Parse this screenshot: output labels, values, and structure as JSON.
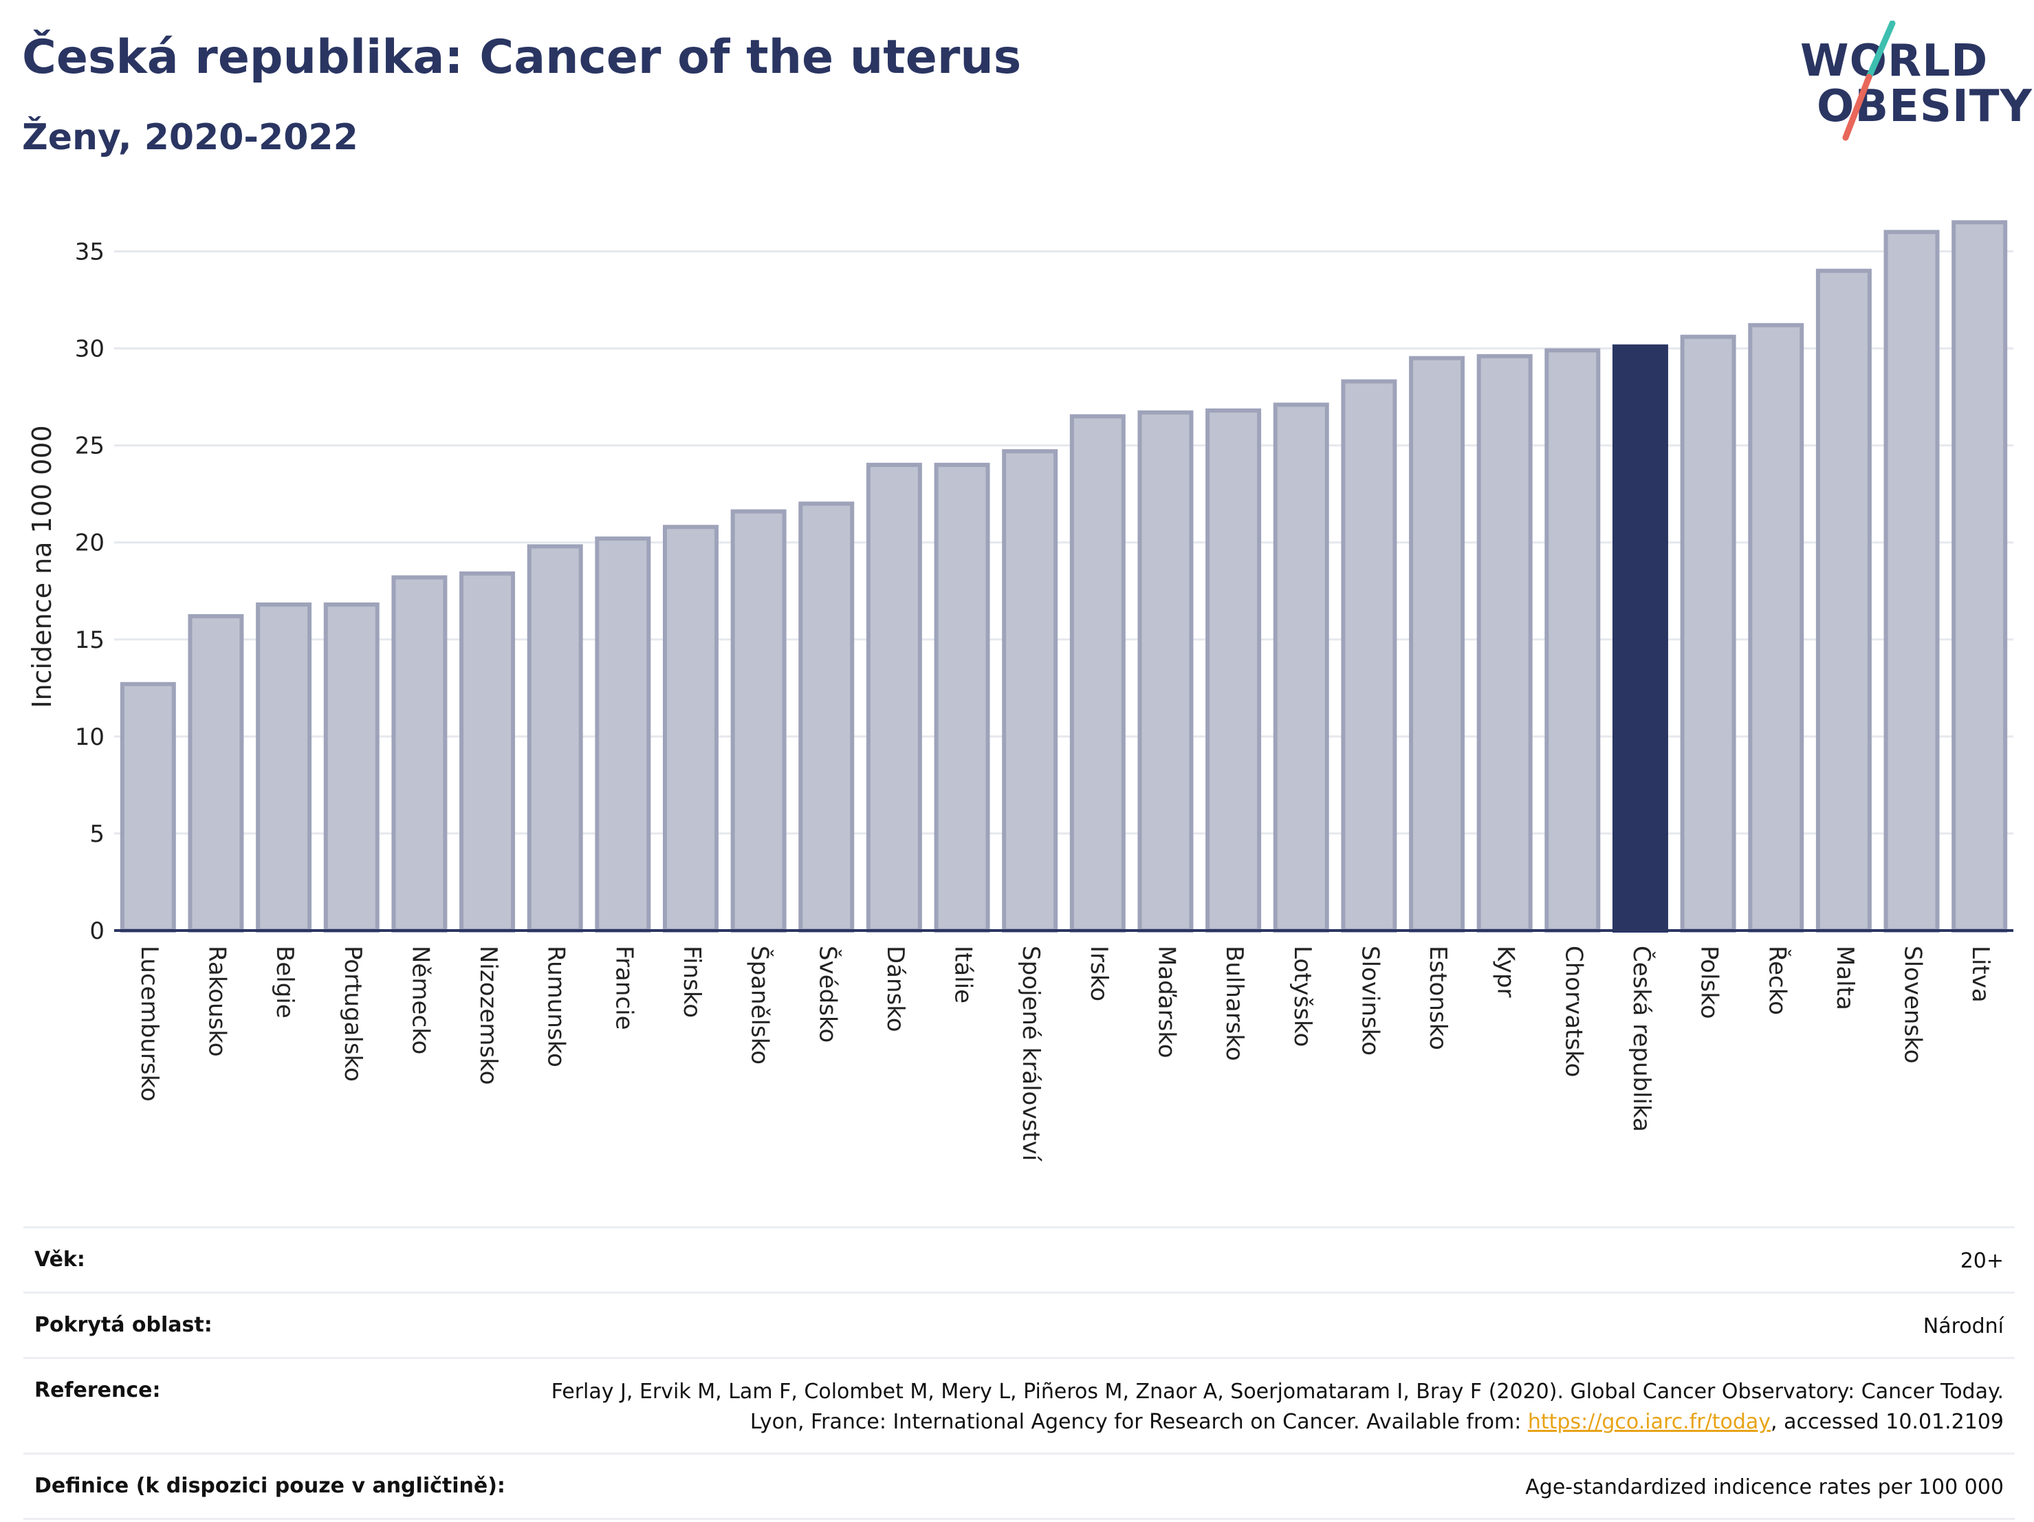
{
  "header": {
    "title": "Česká republika: Cancer of the uterus",
    "subtitle": "Ženy, 2020-2022"
  },
  "logo": {
    "line1": "WORLD",
    "line2": "OBESITY",
    "accent_teal": "#3dbfb0",
    "accent_red": "#e8665a"
  },
  "colors": {
    "bar_default_fill": "#bfc2d0",
    "bar_default_stroke": "#9ea3ba",
    "bar_highlight": "#2a3562",
    "text": "#2a3562",
    "gridline": "#e6e8ee"
  },
  "chart_data": {
    "type": "bar",
    "ylabel": "Incidence na 100 000",
    "xlabel": "",
    "ylim": [
      0,
      37.5
    ],
    "yticks": [
      0,
      5,
      10,
      15,
      20,
      25,
      30,
      35
    ],
    "grid": true,
    "highlight": "Česká republika",
    "categories": [
      "Lucembursko",
      "Rakousko",
      "Belgie",
      "Portugalsko",
      "Německo",
      "Nizozemsko",
      "Rumunsko",
      "Francie",
      "Finsko",
      "Španělsko",
      "Švédsko",
      "Dánsko",
      "Itálie",
      "Spojené království",
      "Irsko",
      "Maďarsko",
      "Bulharsko",
      "Lotyšsko",
      "Slovinsko",
      "Estonsko",
      "Kypr",
      "Chorvatsko",
      "Česká republika",
      "Polsko",
      "Řecko",
      "Malta",
      "Slovensko",
      "Litva"
    ],
    "values": [
      12.7,
      16.2,
      16.8,
      16.8,
      18.2,
      18.4,
      19.8,
      20.2,
      20.8,
      21.6,
      22.0,
      24.0,
      24.0,
      24.7,
      26.5,
      26.7,
      26.8,
      27.1,
      28.3,
      29.5,
      29.6,
      29.9,
      30.1,
      30.6,
      31.2,
      34.0,
      36.0,
      36.5
    ]
  },
  "info": {
    "rows": [
      {
        "label": "Věk:",
        "value": "20+"
      },
      {
        "label": "Pokrytá oblast:",
        "value": "Národní"
      },
      {
        "label": "Reference:",
        "value_pre": "Ferlay J, Ervik M, Lam F, Colombet M, Mery L, Piñeros M, Znaor A, Soerjomataram I, Bray F (2020). Global Cancer Observatory: Cancer Today. Lyon, France: International Agency for Research on Cancer. Available from: ",
        "link": "https://gco.iarc.fr/today",
        "value_post": ", accessed 10.01.2109"
      },
      {
        "label": "Definice (k dispozici pouze v angličtině):",
        "value": "Age-standardized indicence rates per 100 000"
      }
    ]
  }
}
